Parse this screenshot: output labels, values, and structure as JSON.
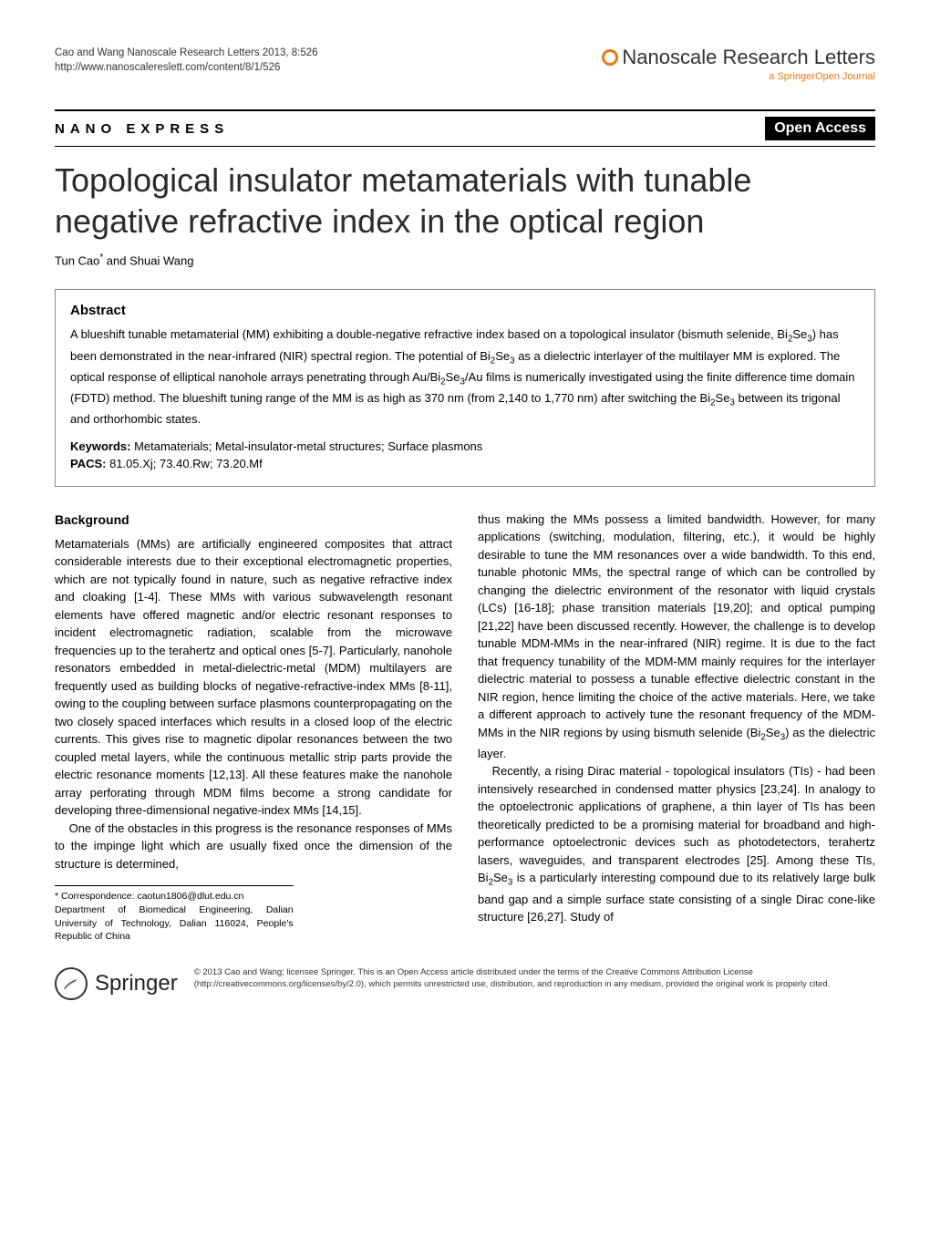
{
  "header": {
    "citation": "Cao and Wang Nanoscale Research Letters 2013, 8:526",
    "url": "http://www.nanoscalereslett.com/content/8/1/526",
    "journal_name": "Nanoscale Research Letters",
    "journal_sub": "a SpringerOpen Journal",
    "section_label": "NANO EXPRESS",
    "open_access": "Open Access"
  },
  "title": "Topological insulator metamaterials with tunable negative refractive index in the optical region",
  "authors_html": "Tun Cao<sup>*</sup> and Shuai Wang",
  "abstract": {
    "heading": "Abstract",
    "text_html": "A blueshift tunable metamaterial (MM) exhibiting a double-negative refractive index based on a topological insulator (bismuth selenide, Bi<sub>2</sub>Se<sub>3</sub>) has been demonstrated in the near-infrared (NIR) spectral region. The potential of Bi<sub>2</sub>Se<sub>3</sub> as a dielectric interlayer of the multilayer MM is explored. The optical response of elliptical nanohole arrays penetrating through Au/Bi<sub>2</sub>Se<sub>3</sub>/Au films is numerically investigated using the finite difference time domain (FDTD) method. The blueshift tuning range of the MM is as high as 370 nm (from 2,140 to 1,770 nm) after switching the Bi<sub>2</sub>Se<sub>3</sub> between its trigonal and orthorhombic states.",
    "keywords_label": "Keywords:",
    "keywords": " Metamaterials; Metal-insulator-metal structures; Surface plasmons",
    "pacs_label": "PACS:",
    "pacs": " 81.05.Xj; 73.40.Rw; 73.20.Mf"
  },
  "body": {
    "heading": "Background",
    "col_left": {
      "p1": "Metamaterials (MMs) are artificially engineered composites that attract considerable interests due to their exceptional electromagnetic properties, which are not typically found in nature, such as negative refractive index and cloaking [1-4]. These MMs with various subwavelength resonant elements have offered magnetic and/or electric resonant responses to incident electromagnetic radiation, scalable from the microwave frequencies up to the terahertz and optical ones [5-7]. Particularly, nanohole resonators embedded in metal-dielectric-metal (MDM) multilayers are frequently used as building blocks of negative-refractive-index MMs [8-11], owing to the coupling between surface plasmons counterpropagating on the two closely spaced interfaces which results in a closed loop of the electric currents. This gives rise to magnetic dipolar resonances between the two coupled metal layers, while the continuous metallic strip parts provide the electric resonance moments [12,13]. All these features make the nanohole array perforating through MDM films become a strong candidate for developing three-dimensional negative-index MMs [14,15].",
      "p2": "One of the obstacles in this progress is the resonance responses of MMs to the impinge light which are usually fixed once the dimension of the structure is determined,"
    },
    "col_right": {
      "p1_html": "thus making the MMs possess a limited bandwidth. However, for many applications (switching, modulation, filtering, etc.), it would be highly desirable to tune the MM resonances over a wide bandwidth. To this end, tunable photonic MMs, the spectral range of which can be controlled by changing the dielectric environment of the resonator with liquid crystals (LCs) [16-18]; phase transition materials [19,20]; and optical pumping [21,22] have been discussed recently. However, the challenge is to develop tunable MDM-MMs in the near-infrared (NIR) regime. It is due to the fact that frequency tunability of the MDM-MM mainly requires for the interlayer dielectric material to possess a tunable effective dielectric constant in the NIR region, hence limiting the choice of the active materials. Here, we take a different approach to actively tune the resonant frequency of the MDM-MMs in the NIR regions by using bismuth selenide (Bi<sub>2</sub>Se<sub>3</sub>) as the dielectric layer.",
      "p2_html": "Recently, a rising Dirac material - topological insulators (TIs) - had been intensively researched in condensed matter physics [23,24]. In analogy to the optoelectronic applications of graphene, a thin layer of TIs has been theoretically predicted to be a promising material for broadband and high-performance optoelectronic devices such as photodetectors, terahertz lasers, waveguides, and transparent electrodes [25]. Among these TIs, Bi<sub>2</sub>Se<sub>3</sub> is a particularly interesting compound due to its relatively large bulk band gap and a simple surface state consisting of a single Dirac cone-like structure [26,27]. Study of"
    }
  },
  "footnotes": {
    "corr": "* Correspondence: caotun1806@dlut.edu.cn",
    "affil": "Department of Biomedical Engineering, Dalian University of Technology, Dalian 116024, People's Republic of China"
  },
  "footer": {
    "springer": "Springer",
    "license": "© 2013 Cao and Wang; licensee Springer. This is an Open Access article distributed under the terms of the Creative Commons Attribution License (http://creativecommons.org/licenses/by/2.0), which permits unrestricted use, distribution, and reproduction in any medium, provided the original work is properly cited."
  },
  "style": {
    "brand_orange": "#e67817",
    "text_color": "#000000",
    "border_gray": "#8a8a8a",
    "body_fontsize": 13,
    "title_fontsize": 36
  }
}
